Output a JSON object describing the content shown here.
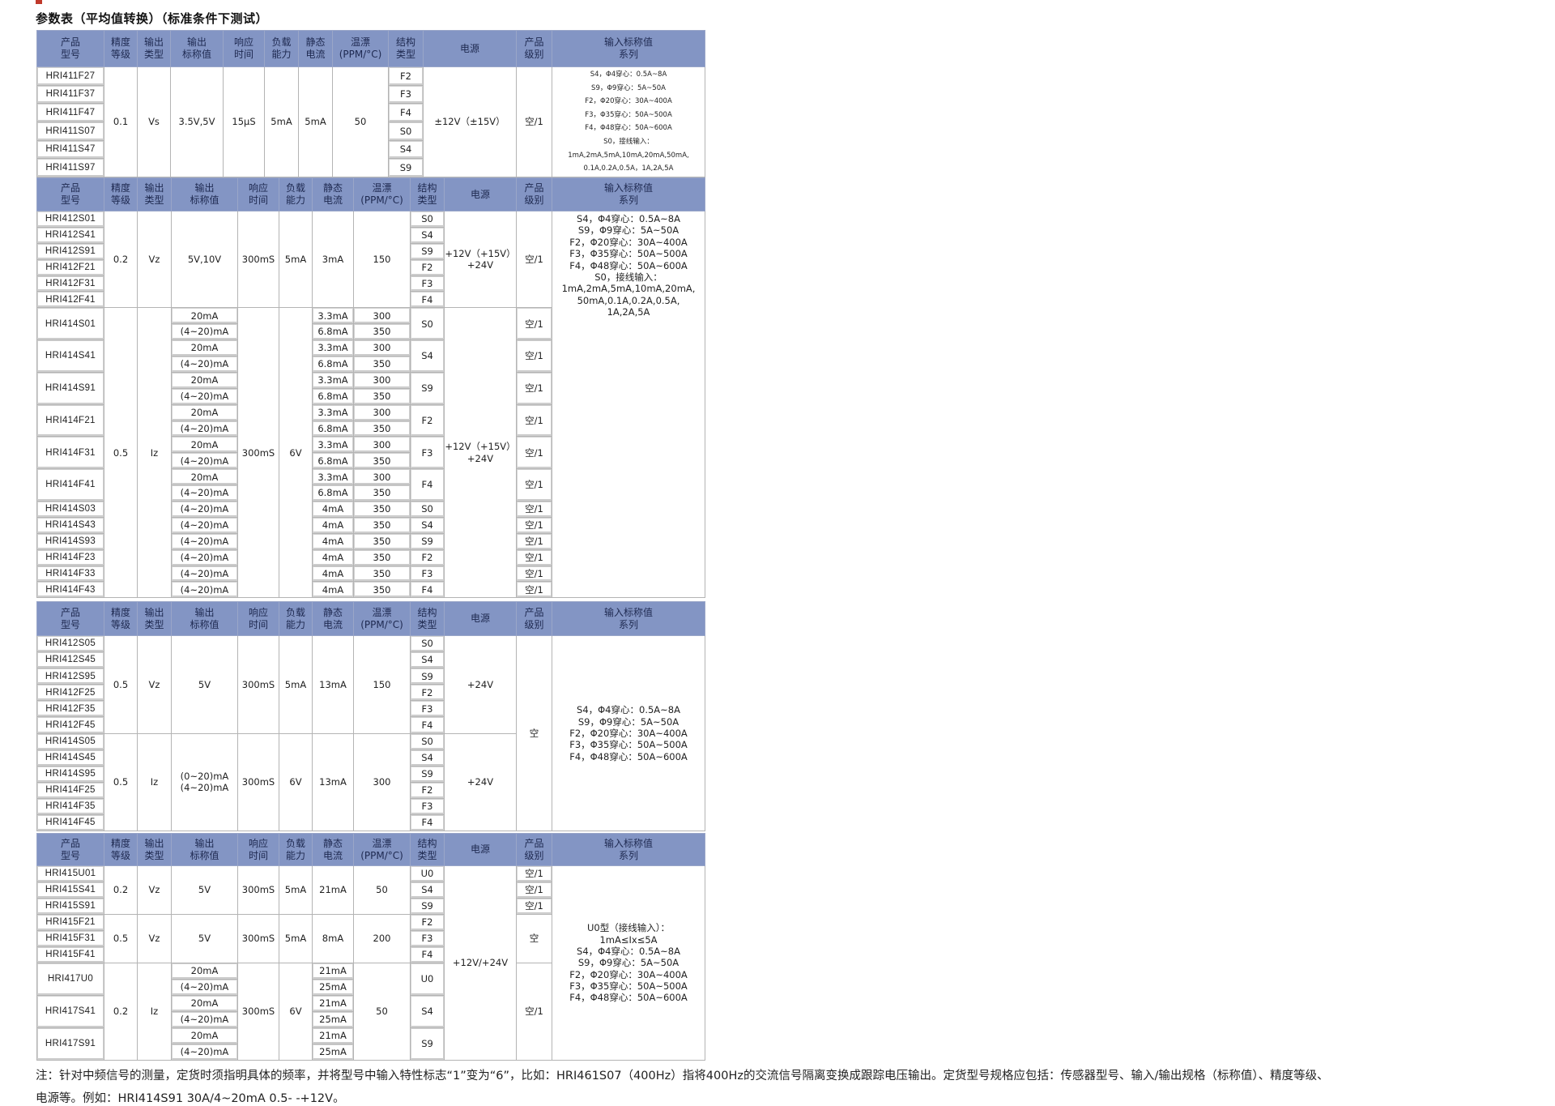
{
  "title": "参数表（平均值转换）（标准条件下测试）",
  "headers": [
    "产品\n型号",
    "精度\n等级",
    "输出\n类型",
    "输出\n标称值",
    "响应\n时间",
    "负载\n能力",
    "静态\n电流",
    "温漂\n(PPM/°C)",
    "结构\n类型",
    "电源",
    "产品\n级别",
    "输入标称值\n系列"
  ],
  "colors": {
    "header_bg": "#8395c4",
    "header_text": "#1e2950",
    "border": "#b4b4b4",
    "mark": "#c0392b"
  },
  "sections": [
    {
      "rows": [
        [
          "HRI411F27",
          {
            "v": "0.1",
            "span": 6
          },
          {
            "v": "Vs",
            "span": 6
          },
          {
            "v": "3.5V,5V",
            "span": 6
          },
          {
            "v": "15μS",
            "span": 6
          },
          {
            "v": "5mA",
            "span": 6
          },
          {
            "v": "5mA",
            "span": 6
          },
          {
            "v": "50",
            "span": 6
          },
          "F2",
          {
            "v": "±12V（±15V）",
            "span": 6
          },
          {
            "v": "空/1",
            "span": 6
          },
          {
            "v": "S4，Φ4穿心：0.5A~8A\nS9，Φ9穿心：5A~50A\nF2，Φ20穿心：30A~400A\nF3，Φ35穿心：50A~500A\nF4，Φ48穿心：50A~600A\nS0，接线输入：\n1mA,2mA,5mA,10mA,20mA,50mA,\n0.1A,0.2A,0.5A，1A,2A,5A",
            "span": 6
          }
        ],
        [
          "HRI411F37",
          "F3"
        ],
        [
          "HRI411F47",
          "F4"
        ],
        [
          "HRI411S07",
          "S0"
        ],
        [
          "HRI411S47",
          "S4"
        ],
        [
          "HRI411S97",
          "S9"
        ]
      ]
    },
    {
      "rows": [
        [
          "HRI412S01",
          {
            "v": "0.2",
            "span": 6
          },
          {
            "v": "Vz",
            "span": 6
          },
          {
            "v": "5V,10V",
            "span": 6
          },
          {
            "v": "300mS",
            "span": 6
          },
          {
            "v": "5mA",
            "span": 6
          },
          {
            "v": "3mA",
            "span": 6
          },
          {
            "v": "150",
            "span": 6
          },
          "S0",
          {
            "v": "+12V（+15V）\n+24V",
            "span": 6
          },
          {
            "v": "空/1",
            "span": 6
          },
          {
            "v": "S4，Φ4穿心：0.5A~8A\nS9，Φ9穿心：5A~50A\nF2，Φ20穿心：30A~400A\nF3，Φ35穿心：50A~500A\nF4，Φ48穿心：50A~600A\nS0，接线输入：\n1mA,2mA,5mA,10mA,20mA,\n50mA,0.1A,0.2A,0.5A,\n1A,2A,5A",
            "span": 24
          }
        ],
        [
          "HRI412S41",
          "S4"
        ],
        [
          "HRI412S91",
          "S9"
        ],
        [
          "HRI412F21",
          "F2"
        ],
        [
          "HRI412F31",
          "F3"
        ],
        [
          "HRI412F41",
          "F4"
        ],
        [
          {
            "v": "HRI414S01",
            "span": 2
          },
          {
            "v": "0.5",
            "span": 18
          },
          {
            "v": "Iz",
            "span": 18
          },
          "20mA",
          {
            "v": "300mS",
            "span": 18
          },
          {
            "v": "6V",
            "span": 18
          },
          "3.3mA",
          "300",
          {
            "v": "S0",
            "span": 2
          },
          {
            "v": "+12V（+15V）\n+24V",
            "span": 18
          },
          {
            "v": "空/1",
            "span": 2
          }
        ],
        [
          "(4~20)mA",
          "6.8mA",
          "350"
        ],
        [
          {
            "v": "HRI414S41",
            "span": 2
          },
          "20mA",
          "3.3mA",
          "300",
          {
            "v": "S4",
            "span": 2
          },
          {
            "v": "空/1",
            "span": 2
          }
        ],
        [
          "(4~20)mA",
          "6.8mA",
          "350"
        ],
        [
          {
            "v": "HRI414S91",
            "span": 2
          },
          "20mA",
          "3.3mA",
          "300",
          {
            "v": "S9",
            "span": 2
          },
          {
            "v": "空/1",
            "span": 2
          }
        ],
        [
          "(4~20)mA",
          "6.8mA",
          "350"
        ],
        [
          {
            "v": "HRI414F21",
            "span": 2
          },
          "20mA",
          "3.3mA",
          "300",
          {
            "v": "F2",
            "span": 2
          },
          {
            "v": "空/1",
            "span": 2
          }
        ],
        [
          "(4~20)mA",
          "6.8mA",
          "350"
        ],
        [
          {
            "v": "HRI414F31",
            "span": 2
          },
          "20mA",
          "3.3mA",
          "300",
          {
            "v": "F3",
            "span": 2
          },
          {
            "v": "空/1",
            "span": 2
          }
        ],
        [
          "(4~20)mA",
          "6.8mA",
          "350"
        ],
        [
          {
            "v": "HRI414F41",
            "span": 2
          },
          "20mA",
          "3.3mA",
          "300",
          {
            "v": "F4",
            "span": 2
          },
          {
            "v": "空/1",
            "span": 2
          }
        ],
        [
          "(4~20)mA",
          "6.8mA",
          "350"
        ],
        [
          "HRI414S03",
          "(4~20)mA",
          "4mA",
          "350",
          "S0",
          "空/1"
        ],
        [
          "HRI414S43",
          "(4~20)mA",
          "4mA",
          "350",
          "S4",
          "空/1"
        ],
        [
          "HRI414S93",
          "(4~20)mA",
          "4mA",
          "350",
          "S9",
          "空/1"
        ],
        [
          "HRI414F23",
          "(4~20)mA",
          "4mA",
          "350",
          "F2",
          "空/1"
        ],
        [
          "HRI414F33",
          "(4~20)mA",
          "4mA",
          "350",
          "F3",
          "空/1"
        ],
        [
          "HRI414F43",
          "(4~20)mA",
          "4mA",
          "350",
          "F4",
          "空/1"
        ]
      ]
    },
    {
      "rows": [
        [
          "HRI412S05",
          {
            "v": "0.5",
            "span": 6
          },
          {
            "v": "Vz",
            "span": 6
          },
          {
            "v": "5V",
            "span": 6
          },
          {
            "v": "300mS",
            "span": 6
          },
          {
            "v": "5mA",
            "span": 6
          },
          {
            "v": "13mA",
            "span": 6
          },
          {
            "v": "150",
            "span": 6
          },
          "S0",
          {
            "v": "+24V",
            "span": 6
          },
          {
            "v": "空",
            "span": 12
          },
          {
            "v": "S4，Φ4穿心：0.5A~8A\nS9，Φ9穿心：5A~50A\nF2，Φ20穿心：30A~400A\nF3，Φ35穿心：50A~500A\nF4，Φ48穿心：50A~600A",
            "span": 12
          }
        ],
        [
          "HRI412S45",
          "S4"
        ],
        [
          "HRI412S95",
          "S9"
        ],
        [
          "HRI412F25",
          "F2"
        ],
        [
          "HRI412F35",
          "F3"
        ],
        [
          "HRI412F45",
          "F4"
        ],
        [
          "HRI414S05",
          {
            "v": "0.5",
            "span": 6
          },
          {
            "v": "Iz",
            "span": 6
          },
          {
            "v": "(0~20)mA\n(4~20)mA",
            "span": 6
          },
          {
            "v": "300mS",
            "span": 6
          },
          {
            "v": "6V",
            "span": 6
          },
          {
            "v": "13mA",
            "span": 6
          },
          {
            "v": "300",
            "span": 6
          },
          "S0",
          {
            "v": "+24V",
            "span": 6
          }
        ],
        [
          "HRI414S45",
          "S4"
        ],
        [
          "HRI414S95",
          "S9"
        ],
        [
          "HRI414F25",
          "F2"
        ],
        [
          "HRI414F35",
          "F3"
        ],
        [
          "HRI414F45",
          "F4"
        ]
      ]
    },
    {
      "rows": [
        [
          "HRI415U01",
          {
            "v": "0.2",
            "span": 3
          },
          {
            "v": "Vz",
            "span": 3
          },
          {
            "v": "5V",
            "span": 3
          },
          {
            "v": "300mS",
            "span": 3
          },
          {
            "v": "5mA",
            "span": 3
          },
          {
            "v": "21mA",
            "span": 3
          },
          {
            "v": "50",
            "span": 3
          },
          "U0",
          {
            "v": "+12V/+24V",
            "span": 12
          },
          "空/1",
          {
            "v": "U0型（接线输入）：\n1mA≤Ix≤5A\nS4，Φ4穿心：0.5A~8A\nS9，Φ9穿心：5A~50A\nF2，Φ20穿心：30A~400A\nF3，Φ35穿心：50A~500A\nF4，Φ48穿心：50A~600A",
            "span": 12
          }
        ],
        [
          "HRI415S41",
          "S4",
          "空/1"
        ],
        [
          "HRI415S91",
          "S9",
          "空/1"
        ],
        [
          "HRI415F21",
          {
            "v": "0.5",
            "span": 3
          },
          {
            "v": "Vz",
            "span": 3
          },
          {
            "v": "5V",
            "span": 3
          },
          {
            "v": "300mS",
            "span": 3
          },
          {
            "v": "5mA",
            "span": 3
          },
          {
            "v": "8mA",
            "span": 3
          },
          {
            "v": "200",
            "span": 3
          },
          "F2",
          {
            "v": "空",
            "span": 3
          }
        ],
        [
          "HRI415F31",
          "F3"
        ],
        [
          "HRI415F41",
          "F4"
        ],
        [
          {
            "v": "HRI417U0",
            "span": 2
          },
          {
            "v": "0.2",
            "span": 6
          },
          {
            "v": "Iz",
            "span": 6
          },
          "20mA",
          {
            "v": "300mS",
            "span": 6
          },
          {
            "v": "6V",
            "span": 6
          },
          "21mA",
          {
            "v": "50",
            "span": 6
          },
          {
            "v": "U0",
            "span": 2
          },
          {
            "v": "空/1",
            "span": 6
          }
        ],
        [
          "(4~20)mA",
          "25mA"
        ],
        [
          {
            "v": "HRI417S41",
            "span": 2
          },
          "20mA",
          "21mA",
          {
            "v": "S4",
            "span": 2
          }
        ],
        [
          "(4~20)mA",
          "25mA"
        ],
        [
          {
            "v": "HRI417S91",
            "span": 2
          },
          "20mA",
          "21mA",
          {
            "v": "S9",
            "span": 2
          }
        ],
        [
          "(4~20)mA",
          "25mA"
        ]
      ]
    }
  ],
  "note": {
    "line1": "注：针对中频信号的测量，定货时须指明具体的频率，并将型号中输入特性标志“1”变为“6”，比如：HRI461S07（400Hz）指将400Hz的交流信号隔离变换成跟踪电压输出。定货型号规格应包括：传感器型号、输入/输出规格（标称值）、精度等级、",
    "line2": "电源等。例如：HRI414S91 30A/4~20mA 0.5- -+12V。"
  }
}
